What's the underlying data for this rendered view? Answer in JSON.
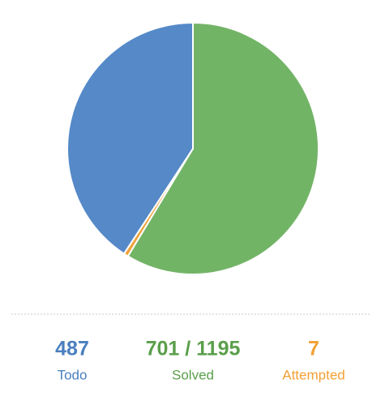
{
  "chart_data": {
    "type": "pie",
    "categories": [
      "Todo",
      "Solved",
      "Attempted"
    ],
    "values": [
      487,
      701,
      7
    ],
    "value_labels": [
      "487",
      "701 / 1195",
      "7"
    ],
    "colors": [
      "#5589c8",
      "#72b466",
      "#f0a23a"
    ],
    "label_colors": [
      "#4a7fbf",
      "#5a9f4b",
      "#f3a035"
    ]
  }
}
